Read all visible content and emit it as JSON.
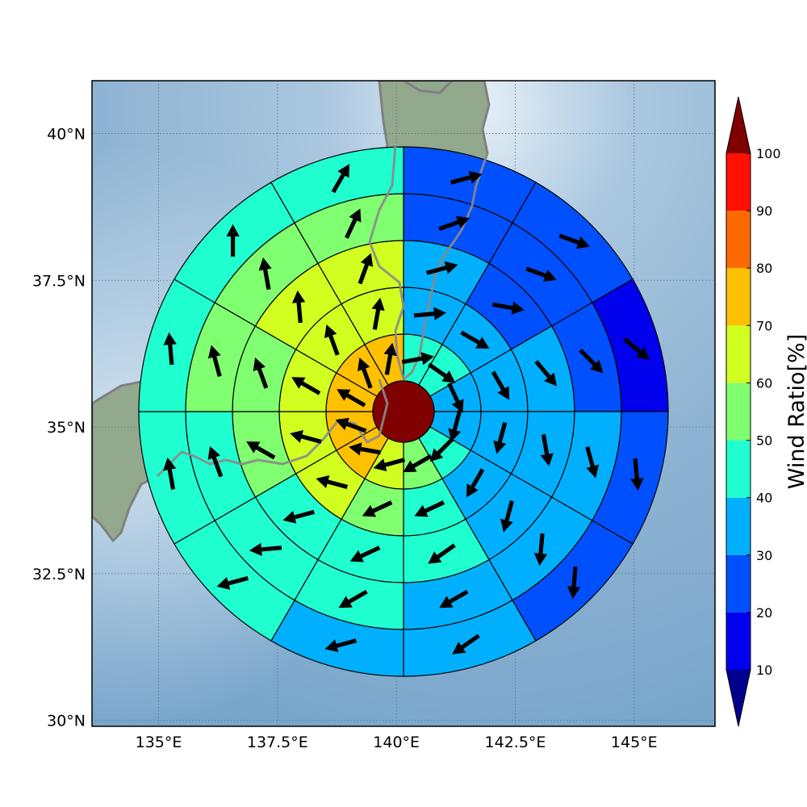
{
  "map": {
    "lon_ticks": [
      "135°E",
      "137.5°E",
      "140°E",
      "142.5°E",
      "145°E"
    ],
    "lat_ticks": [
      "40°N",
      "37.5°N",
      "35°N",
      "32.5°N",
      "30°N"
    ],
    "lon_tick_values": [
      135,
      137.5,
      140,
      142.5,
      145
    ],
    "lat_tick_values": [
      40,
      37.5,
      35,
      32.5,
      30
    ],
    "lon_range": [
      133.6,
      146.7
    ],
    "lat_range": [
      29.9,
      40.9
    ],
    "coastline_color": "#808080",
    "gridlines": true
  },
  "chart_data": {
    "type": "polar-wind-ratio-map",
    "center_value": 100,
    "rings": [
      {
        "ring": 1,
        "values": [
          40,
          40,
          30,
          30,
          40,
          50,
          60,
          70,
          70,
          70,
          70,
          70
        ]
      },
      {
        "ring": 2,
        "values": [
          30,
          30,
          30,
          30,
          30,
          40,
          50,
          60,
          60,
          60,
          60,
          60
        ]
      },
      {
        "ring": 3,
        "values": [
          30,
          20,
          30,
          30,
          30,
          40,
          40,
          40,
          50,
          50,
          60,
          60
        ]
      },
      {
        "ring": 4,
        "values": [
          20,
          20,
          20,
          30,
          30,
          30,
          40,
          40,
          40,
          50,
          50,
          50
        ]
      },
      {
        "ring": 5,
        "values": [
          20,
          20,
          10,
          20,
          20,
          30,
          30,
          40,
          40,
          40,
          40,
          40
        ]
      }
    ],
    "sector_order": "clockwise from north, 30° each",
    "arrow_directions_deg": [
      [
        80,
        125,
        155,
        195,
        225,
        240,
        255,
        280,
        290,
        300,
        340,
        10
      ],
      [
        85,
        120,
        150,
        195,
        210,
        245,
        245,
        285,
        285,
        300,
        340,
        10
      ],
      [
        75,
        100,
        140,
        170,
        195,
        235,
        245,
        255,
        300,
        340,
        355,
        20
      ],
      [
        70,
        110,
        135,
        165,
        185,
        240,
        240,
        265,
        340,
        345,
        350,
        25
      ],
      [
        75,
        110,
        130,
        175,
        185,
        235,
        255,
        255,
        350,
        355,
        0,
        30
      ]
    ],
    "colorbar": {
      "label": "Wind Ratio[%]",
      "ticks": [
        10,
        20,
        30,
        40,
        50,
        60,
        70,
        80,
        90,
        100
      ],
      "bins": [
        {
          "from": 0,
          "to": 10,
          "color": "#00008f"
        },
        {
          "from": 10,
          "to": 20,
          "color": "#0000ee"
        },
        {
          "from": 20,
          "to": 30,
          "color": "#0050ff"
        },
        {
          "from": 30,
          "to": 40,
          "color": "#00b0ff"
        },
        {
          "from": 40,
          "to": 50,
          "color": "#20ffd0"
        },
        {
          "from": 50,
          "to": 60,
          "color": "#80ff70"
        },
        {
          "from": 60,
          "to": 70,
          "color": "#d0ff20"
        },
        {
          "from": 70,
          "to": 80,
          "color": "#ffc000"
        },
        {
          "from": 80,
          "to": 90,
          "color": "#ff6a00"
        },
        {
          "from": 90,
          "to": 100,
          "color": "#ff1000"
        },
        {
          "from": 100,
          "to": 110,
          "color": "#800000"
        }
      ],
      "extend": "both"
    }
  }
}
